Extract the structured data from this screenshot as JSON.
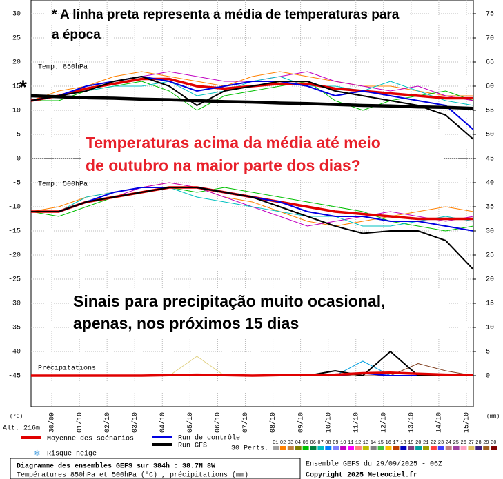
{
  "chart_data": [
    {
      "type": "line",
      "title": "Temp. 850hPa",
      "x": [
        0,
        24,
        48,
        72,
        96,
        120,
        144,
        168,
        192,
        216,
        240,
        264,
        288,
        312,
        336,
        360,
        384
      ],
      "xlim": [
        0,
        384
      ],
      "ylim": [
        0,
        30
      ],
      "yticks": [
        0,
        5,
        10,
        15,
        20,
        25,
        30
      ],
      "y2lim": [
        45,
        75
      ],
      "y2ticks": [
        45,
        50,
        55,
        60,
        65,
        70,
        75
      ],
      "grid": true,
      "series": [
        {
          "color": "#ff8000",
          "style": "thin",
          "values": [
            12,
            14,
            15,
            17,
            18,
            17,
            16,
            15,
            17,
            18,
            17,
            16,
            15,
            15,
            14,
            13,
            13
          ]
        },
        {
          "color": "#00c000",
          "style": "thin",
          "values": [
            12,
            12,
            14,
            15,
            16,
            14,
            10,
            13,
            14,
            15,
            16,
            12,
            10,
            12,
            13,
            14,
            12
          ]
        },
        {
          "color": "#c000c0",
          "style": "thin",
          "values": [
            12,
            13,
            15,
            16,
            17,
            18,
            17,
            16,
            16,
            17,
            18,
            16,
            15,
            14,
            15,
            13,
            12
          ]
        },
        {
          "color": "#00c0c0",
          "style": "thin",
          "values": [
            12,
            13,
            14,
            15,
            15,
            16,
            13,
            14,
            16,
            17,
            15,
            15,
            14,
            16,
            14,
            12,
            11
          ]
        },
        {
          "color": "#e00000",
          "style": "thick",
          "values": [
            12,
            13,
            14.5,
            15.5,
            16.5,
            16.5,
            15,
            14.5,
            15,
            15.5,
            15.5,
            14.5,
            14,
            13.5,
            13,
            12.5,
            12.5
          ]
        },
        {
          "color": "#0000e0",
          "style": "medium",
          "values": [
            12,
            13,
            15,
            16,
            17,
            16,
            14,
            15,
            16,
            16,
            15,
            13,
            14,
            13,
            12,
            11,
            6
          ]
        },
        {
          "color": "#000000",
          "style": "medium",
          "values": [
            12,
            13,
            14,
            16,
            17,
            15,
            11,
            14,
            15,
            16,
            16,
            14,
            13,
            12,
            11,
            9,
            4
          ]
        },
        {
          "color": "#000000",
          "style": "heavy",
          "values": [
            13,
            12.8,
            12.6,
            12.5,
            12.3,
            12.2,
            12,
            11.8,
            11.7,
            11.5,
            11.4,
            11.2,
            11,
            10.9,
            10.7,
            10.6,
            10.4
          ]
        }
      ]
    },
    {
      "type": "line",
      "title": "Temp. 500hPa",
      "y2_title": "Précipitations",
      "x": [
        0,
        24,
        48,
        72,
        96,
        120,
        144,
        168,
        192,
        216,
        240,
        264,
        288,
        312,
        336,
        360,
        384
      ],
      "xlim": [
        0,
        384
      ],
      "xticks": [
        {
          "value": 18,
          "label": "30/09"
        },
        {
          "value": 42,
          "label": "01/10"
        },
        {
          "value": 66,
          "label": "02/10"
        },
        {
          "value": 90,
          "label": "03/10"
        },
        {
          "value": 114,
          "label": "04/10"
        },
        {
          "value": 138,
          "label": "05/10"
        },
        {
          "value": 162,
          "label": "06/10"
        },
        {
          "value": 186,
          "label": "07/10"
        },
        {
          "value": 210,
          "label": "08/10"
        },
        {
          "value": 234,
          "label": "09/10"
        },
        {
          "value": 258,
          "label": "10/10"
        },
        {
          "value": 282,
          "label": "11/10"
        },
        {
          "value": 306,
          "label": "12/10"
        },
        {
          "value": 330,
          "label": "13/10"
        },
        {
          "value": 354,
          "label": "14/10"
        },
        {
          "value": 378,
          "label": "15/10"
        }
      ],
      "ylim": [
        -45,
        -5
      ],
      "yticks": [
        -45,
        -40,
        -35,
        -30,
        -25,
        -20,
        -15,
        -10,
        -5
      ],
      "y2lim": [
        0,
        40
      ],
      "y2ticks": [
        0,
        5,
        10,
        15,
        20,
        25,
        30,
        35,
        40
      ],
      "grid": true,
      "series": [
        {
          "color": "#ff8000",
          "style": "thin",
          "values": [
            -11,
            -10,
            -8,
            -7,
            -6,
            -5,
            -6,
            -8,
            -9,
            -11,
            -13,
            -14,
            -13,
            -12,
            -11,
            -10,
            -11
          ]
        },
        {
          "color": "#00c000",
          "style": "thin",
          "values": [
            -11,
            -12,
            -10,
            -8,
            -7,
            -6,
            -7,
            -6,
            -7,
            -8,
            -9,
            -10,
            -11,
            -13,
            -14,
            -15,
            -14
          ]
        },
        {
          "color": "#c000c0",
          "style": "thin",
          "values": [
            -11,
            -11,
            -9,
            -8,
            -6,
            -5,
            -6,
            -8,
            -10,
            -12,
            -14,
            -13,
            -12,
            -11,
            -12,
            -13,
            -12
          ]
        },
        {
          "color": "#00c0c0",
          "style": "thin",
          "values": [
            -11,
            -11,
            -8,
            -7,
            -6,
            -6,
            -8,
            -9,
            -10,
            -11,
            -12,
            -12,
            -14,
            -14,
            -13,
            -12,
            -13
          ]
        },
        {
          "color": "#e00000",
          "style": "thick",
          "values": [
            -11,
            -11,
            -9,
            -8,
            -7,
            -6,
            -6,
            -7,
            -8,
            -9,
            -10,
            -11,
            -11.5,
            -12,
            -12.5,
            -12.5,
            -12.5
          ]
        },
        {
          "color": "#0000e0",
          "style": "medium",
          "values": [
            -11,
            -11,
            -9,
            -7,
            -6,
            -6,
            -6,
            -7,
            -8,
            -9,
            -11,
            -12,
            -12,
            -13,
            -13,
            -14,
            -15
          ]
        },
        {
          "color": "#000000",
          "style": "medium",
          "values": [
            -11,
            -11,
            -9,
            -8,
            -7,
            -6,
            -6,
            -7,
            -8,
            -10,
            -12,
            -14,
            -15.5,
            -15,
            -15,
            -17,
            -23
          ]
        },
        {
          "color": "#e0d080",
          "style": "thin",
          "axis": "y2",
          "values": [
            0,
            0,
            0,
            0,
            0,
            0,
            4,
            0,
            0,
            0,
            0,
            0,
            0,
            0,
            0,
            0,
            0
          ]
        },
        {
          "color": "#804020",
          "style": "thin",
          "axis": "y2",
          "values": [
            0,
            0,
            0,
            0,
            0,
            0,
            0,
            0,
            0,
            0,
            0,
            0,
            0,
            0,
            2.5,
            1,
            0
          ]
        },
        {
          "color": "#00a0e0",
          "style": "thin",
          "axis": "y2",
          "values": [
            0,
            0,
            0,
            0,
            0,
            0,
            0,
            0,
            0,
            0,
            0,
            0,
            3,
            0,
            0,
            0,
            0
          ]
        },
        {
          "color": "#0000e0",
          "style": "medium",
          "axis": "y2",
          "values": [
            0,
            0,
            0,
            0,
            0,
            0,
            0,
            0,
            0,
            0,
            0,
            0,
            0.5,
            0,
            0,
            0,
            0
          ]
        },
        {
          "color": "#000000",
          "style": "medium",
          "axis": "y2",
          "values": [
            0,
            0,
            0,
            0,
            0,
            0,
            0,
            0,
            0,
            0,
            0,
            1,
            0,
            5,
            0,
            0,
            0
          ]
        },
        {
          "color": "#e00000",
          "style": "thick",
          "axis": "y2",
          "values": [
            0,
            0,
            0,
            0,
            0,
            0.1,
            0.2,
            0.1,
            0,
            0.1,
            0.1,
            0.2,
            0.5,
            0.6,
            0.4,
            0.2,
            0.1
          ]
        }
      ]
    }
  ],
  "axes": {
    "left_unit": "(°C)",
    "right_unit": "(mm)",
    "altitude": "Alt. 216m"
  },
  "legend": {
    "items": [
      {
        "name": "Moyenne des scénarios",
        "color": "#e00000"
      },
      {
        "name": "Run de contrôle",
        "color": "#0000e0"
      },
      {
        "name": "Run GFS",
        "color": "#000000"
      }
    ],
    "snow": "Risque neige",
    "perts_label": "30 Perts.",
    "perts": [
      "01",
      "02",
      "03",
      "04",
      "05",
      "06",
      "07",
      "08",
      "09",
      "10",
      "11",
      "12",
      "13",
      "14",
      "15",
      "16",
      "17",
      "18",
      "19",
      "20",
      "21",
      "22",
      "23",
      "24",
      "25",
      "26",
      "27",
      "28",
      "29",
      "30"
    ],
    "pert_colors": [
      "#a0a0a0",
      "#ff8000",
      "#c08040",
      "#808000",
      "#00c000",
      "#008040",
      "#00c0c0",
      "#0080ff",
      "#8080ff",
      "#c000c0",
      "#ff00ff",
      "#ff8080",
      "#c0c000",
      "#808080",
      "#40c040",
      "#ffc000",
      "#c04000",
      "#0000c0",
      "#804080",
      "#00a0a0",
      "#a0a000",
      "#ff4040",
      "#4040ff",
      "#c08080",
      "#a040a0",
      "#ffa0c0",
      "#e0c060",
      "#402080",
      "#a06020",
      "#800000"
    ]
  },
  "annotations": {
    "star": "*",
    "note": [
      "* A linha preta representa a média de temperaturas para",
      "a época"
    ],
    "headline": [
      "Temperaturas acima da média até meio",
      "de outubro na maior parte dos dias?"
    ],
    "precip_note": [
      "Sinais para precipitação muito ocasional,",
      "apenas, nos próximos 15 dias"
    ]
  },
  "footer": {
    "title": "Diagramme des ensembles GEFS sur 384h : 38.7N 8W",
    "subtitle": "Températures 850hPa et 500hPa (°C) , précipitations (mm)",
    "run": "Ensemble GEFS du 29/09/2025 - 06Z",
    "copyright": "Copyright 2025 Meteociel.fr"
  }
}
